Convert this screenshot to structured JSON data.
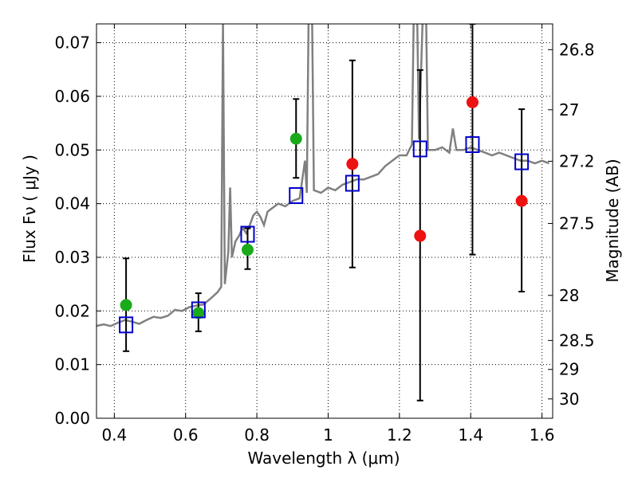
{
  "chart_data": {
    "type": "scatter",
    "xlabel": "Wavelength  λ (μm)",
    "ylabel": "Flux  Fν  ( μJy )",
    "y2label": "Magnitude (AB)",
    "xlim": [
      0.35,
      1.63
    ],
    "ylim": [
      0.0,
      0.0735
    ],
    "grid": true,
    "x_ticks": [
      0.4,
      0.6,
      0.8,
      1.0,
      1.2,
      1.4,
      1.6
    ],
    "x_tick_labels": [
      "0.4",
      "0.6",
      "0.8",
      "1",
      "1.2",
      "1.4",
      "1.6"
    ],
    "y_ticks": [
      0.0,
      0.01,
      0.02,
      0.03,
      0.04,
      0.05,
      0.06,
      0.07
    ],
    "y_tick_labels": [
      "0.00",
      "0.01",
      "0.02",
      "0.03",
      "0.04",
      "0.05",
      "0.06",
      "0.07"
    ],
    "y2_ticks": [
      {
        "label": "26.8",
        "flux": 0.0687
      },
      {
        "label": "27",
        "flux": 0.0575
      },
      {
        "label": "27.2",
        "flux": 0.0479
      },
      {
        "label": "27.5",
        "flux": 0.0363
      },
      {
        "label": "28",
        "flux": 0.0229
      },
      {
        "label": "28.5",
        "flux": 0.0145
      },
      {
        "label": "29",
        "flux": 0.0091
      },
      {
        "label": "30",
        "flux": 0.0036
      }
    ],
    "colors": {
      "spectrum": "#808080",
      "green": "#1aaa1a",
      "red": "#ee1111",
      "model": "#0000cc",
      "errorbar": "#000000",
      "grid": "#000000"
    },
    "spectrum": [
      [
        0.35,
        0.0172
      ],
      [
        0.37,
        0.0175
      ],
      [
        0.39,
        0.0172
      ],
      [
        0.41,
        0.0178
      ],
      [
        0.43,
        0.0183
      ],
      [
        0.45,
        0.018
      ],
      [
        0.47,
        0.0176
      ],
      [
        0.49,
        0.0183
      ],
      [
        0.51,
        0.0189
      ],
      [
        0.53,
        0.0187
      ],
      [
        0.55,
        0.0191
      ],
      [
        0.57,
        0.0202
      ],
      [
        0.59,
        0.02
      ],
      [
        0.61,
        0.0207
      ],
      [
        0.63,
        0.021
      ],
      [
        0.65,
        0.0212
      ],
      [
        0.67,
        0.0223
      ],
      [
        0.69,
        0.0235
      ],
      [
        0.7,
        0.0245
      ],
      [
        0.705,
        0.074
      ],
      [
        0.71,
        0.025
      ],
      [
        0.72,
        0.031
      ],
      [
        0.725,
        0.043
      ],
      [
        0.73,
        0.03
      ],
      [
        0.74,
        0.033
      ],
      [
        0.75,
        0.034
      ],
      [
        0.76,
        0.0355
      ],
      [
        0.77,
        0.0345
      ],
      [
        0.78,
        0.036
      ],
      [
        0.79,
        0.0378
      ],
      [
        0.8,
        0.0385
      ],
      [
        0.81,
        0.0375
      ],
      [
        0.82,
        0.036
      ],
      [
        0.83,
        0.0385
      ],
      [
        0.84,
        0.039
      ],
      [
        0.86,
        0.04
      ],
      [
        0.88,
        0.0395
      ],
      [
        0.9,
        0.0405
      ],
      [
        0.92,
        0.041
      ],
      [
        0.935,
        0.048
      ],
      [
        0.94,
        0.042
      ],
      [
        0.945,
        0.074
      ],
      [
        0.955,
        0.074
      ],
      [
        0.96,
        0.0425
      ],
      [
        0.98,
        0.042
      ],
      [
        1.0,
        0.043
      ],
      [
        1.02,
        0.0425
      ],
      [
        1.04,
        0.0435
      ],
      [
        1.06,
        0.044
      ],
      [
        1.08,
        0.0445
      ],
      [
        1.1,
        0.0445
      ],
      [
        1.12,
        0.045
      ],
      [
        1.14,
        0.0455
      ],
      [
        1.16,
        0.047
      ],
      [
        1.18,
        0.048
      ],
      [
        1.2,
        0.049
      ],
      [
        1.22,
        0.049
      ],
      [
        1.235,
        0.051
      ],
      [
        1.24,
        0.074
      ],
      [
        1.25,
        0.074
      ],
      [
        1.255,
        0.052
      ],
      [
        1.265,
        0.074
      ],
      [
        1.275,
        0.074
      ],
      [
        1.28,
        0.05
      ],
      [
        1.3,
        0.05
      ],
      [
        1.32,
        0.0505
      ],
      [
        1.34,
        0.0495
      ],
      [
        1.35,
        0.054
      ],
      [
        1.36,
        0.05
      ],
      [
        1.38,
        0.05
      ],
      [
        1.4,
        0.0505
      ],
      [
        1.42,
        0.05
      ],
      [
        1.44,
        0.0495
      ],
      [
        1.46,
        0.049
      ],
      [
        1.48,
        0.0495
      ],
      [
        1.5,
        0.049
      ],
      [
        1.52,
        0.0485
      ],
      [
        1.54,
        0.048
      ],
      [
        1.56,
        0.048
      ],
      [
        1.58,
        0.0475
      ],
      [
        1.6,
        0.048
      ],
      [
        1.62,
        0.0475
      ]
    ],
    "points_green": [
      {
        "x": 0.433,
        "y": 0.0211
      },
      {
        "x": 0.636,
        "y": 0.0196,
        "err_low": 0.0162,
        "err_high": 0.0233
      },
      {
        "x": 0.774,
        "y": 0.0314,
        "err_low": 0.0278,
        "err_high": 0.0354
      },
      {
        "x": 0.91,
        "y": 0.0521,
        "err_low": 0.0448,
        "err_high": 0.0595
      }
    ],
    "points_red": [
      {
        "x": 1.068,
        "y": 0.0474,
        "err_low": 0.0281,
        "err_high": 0.0667
      },
      {
        "x": 1.258,
        "y": 0.034,
        "err_low": 0.0033,
        "err_high": 0.0649
      },
      {
        "x": 1.405,
        "y": 0.0589,
        "err_low": 0.0305,
        "err_high": 0.0735
      },
      {
        "x": 1.543,
        "y": 0.0405,
        "err_low": 0.0236,
        "err_high": 0.0576
      }
    ],
    "extra_errorbars": [
      {
        "x": 0.433,
        "low": 0.0125,
        "high": 0.0298
      }
    ],
    "model_points": [
      {
        "x": 0.433,
        "y": 0.0174
      },
      {
        "x": 0.636,
        "y": 0.0202
      },
      {
        "x": 0.774,
        "y": 0.0343
      },
      {
        "x": 0.91,
        "y": 0.0415
      },
      {
        "x": 1.068,
        "y": 0.0438
      },
      {
        "x": 1.258,
        "y": 0.0502
      },
      {
        "x": 1.405,
        "y": 0.051
      },
      {
        "x": 1.543,
        "y": 0.0478
      }
    ]
  }
}
